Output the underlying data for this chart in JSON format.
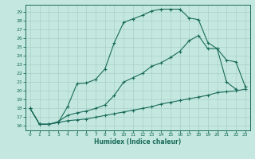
{
  "xlabel": "Humidex (Indice chaleur)",
  "ylabel": "",
  "bg_color": "#c4e8e0",
  "line_color": "#1a6b5a",
  "grid_color": "#a8d0c8",
  "xlim": [
    -0.5,
    23.5
  ],
  "ylim": [
    15.5,
    29.8
  ],
  "xticks": [
    0,
    1,
    2,
    3,
    4,
    5,
    6,
    7,
    8,
    9,
    10,
    11,
    12,
    13,
    14,
    15,
    16,
    17,
    18,
    19,
    20,
    21,
    22,
    23
  ],
  "yticks": [
    16,
    17,
    18,
    19,
    20,
    21,
    22,
    23,
    24,
    25,
    26,
    27,
    28,
    29
  ],
  "line1_x": [
    0,
    1,
    2,
    3,
    4,
    5,
    6,
    7,
    8,
    9,
    10,
    11,
    12,
    13,
    14,
    15,
    16,
    17,
    18,
    19,
    20,
    21,
    22
  ],
  "line1_y": [
    18,
    16.2,
    16.2,
    16.4,
    18.2,
    20.8,
    20.9,
    21.3,
    22.5,
    25.5,
    27.8,
    28.2,
    28.6,
    29.1,
    29.3,
    29.3,
    29.3,
    28.3,
    28.1,
    25.5,
    24.8,
    21.0,
    20.2
  ],
  "line2_x": [
    0,
    1,
    2,
    3,
    4,
    5,
    6,
    7,
    8,
    9,
    10,
    11,
    12,
    13,
    14,
    15,
    16,
    17,
    18,
    19,
    20,
    21,
    22,
    23
  ],
  "line2_y": [
    18,
    16.2,
    16.2,
    16.5,
    17.2,
    17.5,
    17.7,
    18.0,
    18.4,
    19.5,
    21.0,
    21.5,
    22.0,
    22.8,
    23.2,
    23.8,
    24.5,
    25.7,
    26.3,
    24.8,
    24.8,
    23.5,
    23.3,
    20.5
  ],
  "line3_x": [
    0,
    1,
    2,
    3,
    4,
    5,
    6,
    7,
    8,
    9,
    10,
    11,
    12,
    13,
    14,
    15,
    16,
    17,
    18,
    19,
    20,
    21,
    22,
    23
  ],
  "line3_y": [
    18,
    16.2,
    16.2,
    16.4,
    16.6,
    16.7,
    16.8,
    17.0,
    17.2,
    17.4,
    17.6,
    17.8,
    18.0,
    18.2,
    18.5,
    18.7,
    18.9,
    19.1,
    19.3,
    19.5,
    19.8,
    19.9,
    20.0,
    20.2
  ]
}
